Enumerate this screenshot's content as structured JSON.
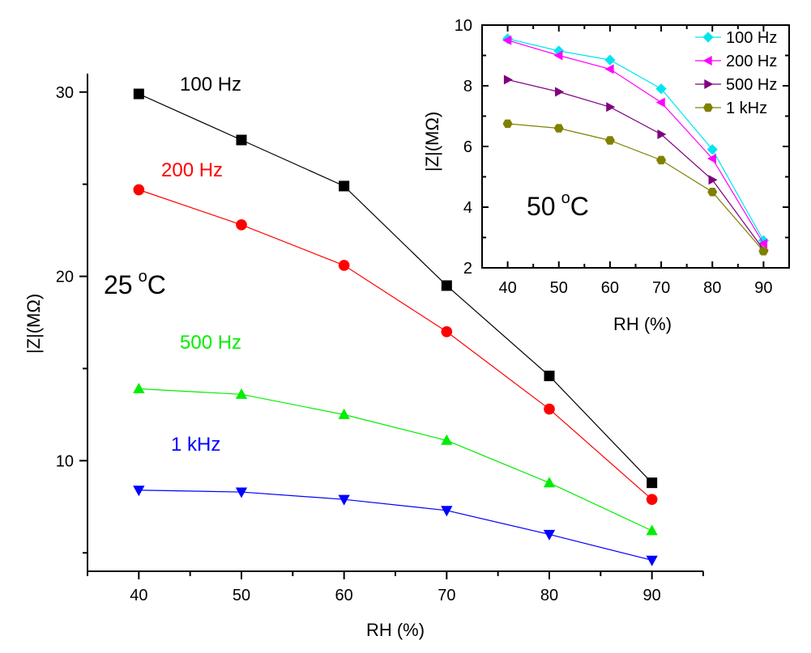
{
  "chart_data": [
    {
      "type": "line",
      "xlabel": "RH (%)",
      "ylabel": "|Z|(MΩ)",
      "annotation": {
        "main": "25",
        "superscript": "o",
        "unit": "C"
      },
      "x": [
        40,
        50,
        60,
        70,
        80,
        90
      ],
      "xlim": [
        35,
        95
      ],
      "ylim": [
        4,
        31
      ],
      "xticks": [
        40,
        50,
        60,
        70,
        80,
        90
      ],
      "yticks": [
        10,
        20,
        30
      ],
      "grid": false,
      "legend": "inline labels",
      "series": [
        {
          "name": "100 Hz",
          "color": "#000000",
          "marker": "square",
          "values": [
            29.9,
            27.4,
            24.9,
            19.5,
            14.6,
            8.8
          ]
        },
        {
          "name": "200 Hz",
          "color": "#ff0000",
          "marker": "circle",
          "values": [
            24.7,
            22.8,
            20.6,
            17.0,
            12.8,
            7.9
          ]
        },
        {
          "name": "500 Hz",
          "color": "#00ee00",
          "marker": "triangle-up",
          "values": [
            13.9,
            13.6,
            12.5,
            11.1,
            8.8,
            6.2
          ]
        },
        {
          "name": "1 kHz",
          "color": "#0000ff",
          "marker": "triangle-down",
          "values": [
            8.4,
            8.3,
            7.9,
            7.3,
            6.0,
            4.6
          ]
        }
      ]
    },
    {
      "type": "line",
      "xlabel": "RH (%)",
      "ylabel": "|Z|(MΩ)",
      "annotation": {
        "main": "50",
        "superscript": "o",
        "unit": "C"
      },
      "x": [
        40,
        50,
        60,
        70,
        80,
        90
      ],
      "xlim": [
        35,
        95
      ],
      "ylim": [
        2,
        10
      ],
      "xticks": [
        40,
        50,
        60,
        70,
        80,
        90
      ],
      "yticks": [
        2,
        4,
        6,
        8,
        10
      ],
      "grid": false,
      "legend": "top-right",
      "series": [
        {
          "name": "100 Hz",
          "color": "#00e5ee",
          "marker": "diamond",
          "values": [
            9.55,
            9.15,
            8.85,
            7.9,
            5.9,
            2.9
          ]
        },
        {
          "name": "200 Hz",
          "color": "#ff00ff",
          "marker": "triangle-left",
          "values": [
            9.5,
            9.0,
            8.55,
            7.45,
            5.6,
            2.8
          ]
        },
        {
          "name": "500 Hz",
          "color": "#800080",
          "marker": "triangle-right",
          "values": [
            8.2,
            7.8,
            7.3,
            6.4,
            4.9,
            2.6
          ]
        },
        {
          "name": "1 kHz",
          "color": "#808000",
          "marker": "hexagon",
          "values": [
            6.75,
            6.6,
            6.2,
            5.55,
            4.5,
            2.55
          ]
        }
      ]
    }
  ]
}
